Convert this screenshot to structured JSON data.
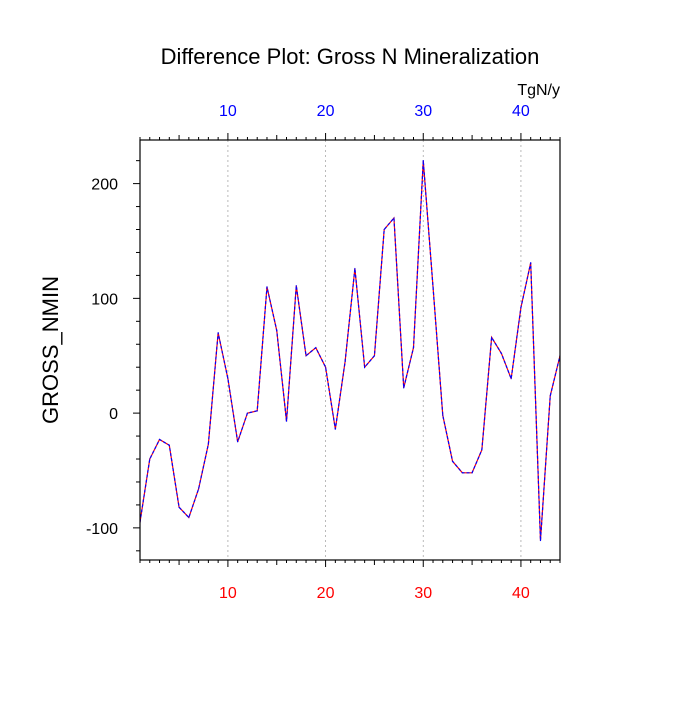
{
  "chart_data": {
    "type": "line",
    "title": "Difference Plot: Gross N Mineralization",
    "ylabel": "GROSS_NMIN",
    "units": "TgN/y",
    "xlim": [
      1,
      44
    ],
    "ylim": [
      -128,
      238
    ],
    "x_ticks": [
      10,
      20,
      30,
      40
    ],
    "y_ticks": [
      -100,
      0,
      100,
      200
    ],
    "x_tick_labels": [
      "10",
      "20",
      "30",
      "40"
    ],
    "y_tick_labels": [
      "-100",
      "0",
      "100",
      "200"
    ],
    "grid": "vertical dotted at major x ticks",
    "colors": {
      "bottom_axis_labels": "#ff0000",
      "top_axis_labels": "#0000ff",
      "line_dash_a": "#0000ff",
      "line_dash_b": "#ff0000",
      "axis": "#000000",
      "grid": "#aaaaaa"
    },
    "series": [
      {
        "x": [
          1,
          2,
          3,
          4,
          5,
          6,
          7,
          8,
          9,
          10,
          11,
          12,
          13,
          14,
          15,
          16,
          17,
          18,
          19,
          20,
          21,
          22,
          23,
          24,
          25,
          26,
          27,
          28,
          29,
          30,
          31,
          32,
          33,
          34,
          35,
          36,
          37,
          38,
          39,
          40,
          41,
          42,
          43,
          44
        ],
        "values": [
          -95,
          -40,
          -23,
          -28,
          -82,
          -91,
          -66,
          -27,
          70,
          30,
          -25,
          0,
          2,
          110,
          72,
          -7,
          111,
          50,
          57,
          40,
          -14,
          45,
          126,
          40,
          50,
          160,
          170,
          22,
          57,
          220,
          110,
          -2,
          -42,
          -52,
          -52,
          -32,
          66,
          52,
          30,
          92,
          131,
          -111,
          15,
          50
        ]
      }
    ]
  }
}
